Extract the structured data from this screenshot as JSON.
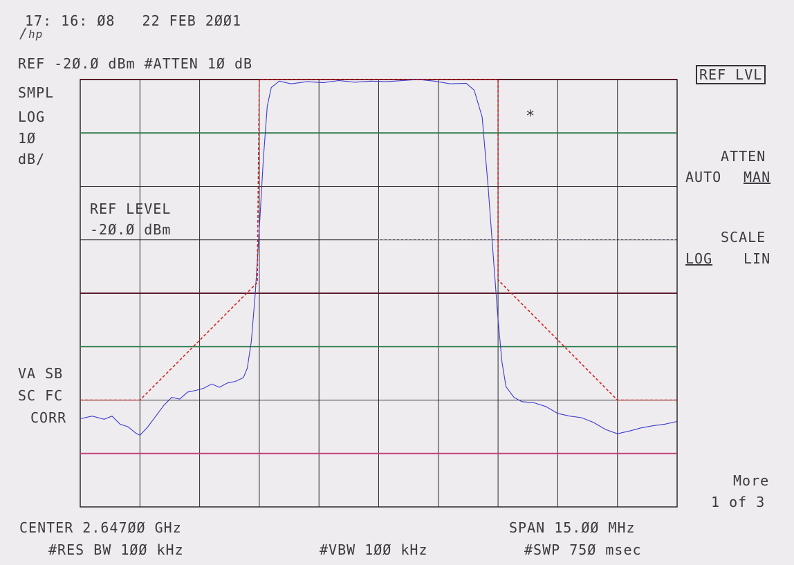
{
  "header": {
    "timestamp": "17: 16: Ø8   22 FEB 2ØØ1",
    "logo": "hp",
    "ref_line": "REF -2Ø.Ø dBm #ATTEN 1Ø dB"
  },
  "left_annotations": {
    "detector": "SMPL",
    "scale": "LOG",
    "scale_value": "1Ø",
    "scale_unit": "dB/",
    "va_sb": "VA SB",
    "sc_fc": "SC FC",
    "corr": "CORR"
  },
  "active_function": {
    "label": "REF LEVEL",
    "value": "-2Ø.Ø dBm"
  },
  "marker_symbol": "*",
  "softkeys": {
    "ref_lvl": "REF LVL",
    "atten": "ATTEN",
    "atten_auto": "AUTO",
    "atten_man": "MAN",
    "scale": "SCALE",
    "scale_log": "LOG",
    "scale_lin": "LIN",
    "more": "More",
    "page": "1 of 3"
  },
  "footer": {
    "center": "CENTER 2.647ØØ GHz",
    "span": "SPAN 15.ØØ MHz",
    "res_bw": "#RES BW 1ØØ kHz",
    "vbw": "#VBW 1ØØ kHz",
    "swp": "#SWP 75Ø msec"
  },
  "chart_data": {
    "type": "line",
    "title": "",
    "xlabel": "",
    "ylabel": "",
    "x_units": "MHz offset from center 2.647 GHz",
    "xlim": [
      -7.5,
      7.5
    ],
    "ylim": [
      -100,
      -20
    ],
    "x_divisions": 10,
    "y_divisions": 8,
    "grid": true,
    "colors": {
      "trace": "#3b3bd0",
      "mask": "#d42020",
      "grid": "#2a2a2a",
      "green_line": "#2e7d4f",
      "magenta_line": "#c0407a",
      "dark_red_line": "#5a1a2a"
    },
    "reference_lines_dBm": [
      {
        "value": -20,
        "color": "#5a1a2a"
      },
      {
        "value": -30,
        "color": "#2e7d4f"
      },
      {
        "value": -60,
        "color": "#5a1a2a"
      },
      {
        "value": -70,
        "color": "#2e7d4f"
      },
      {
        "value": -90,
        "color": "#c0407a"
      }
    ],
    "series": [
      {
        "role": "trace",
        "points": [
          [
            -7.5,
            -83.5
          ],
          [
            -7.2,
            -83
          ],
          [
            -6.9,
            -83.6
          ],
          [
            -6.7,
            -83
          ],
          [
            -6.5,
            -84.5
          ],
          [
            -6.3,
            -85
          ],
          [
            -6.1,
            -86.2
          ],
          [
            -6.0,
            -86.6
          ],
          [
            -5.8,
            -85
          ],
          [
            -5.6,
            -83
          ],
          [
            -5.4,
            -81
          ],
          [
            -5.2,
            -79.5
          ],
          [
            -5.0,
            -79.8
          ],
          [
            -4.8,
            -78.5
          ],
          [
            -4.6,
            -78.2
          ],
          [
            -4.4,
            -77.8
          ],
          [
            -4.2,
            -77
          ],
          [
            -4.0,
            -77.6
          ],
          [
            -3.8,
            -76.8
          ],
          [
            -3.6,
            -76.5
          ],
          [
            -3.4,
            -75.8
          ],
          [
            -3.3,
            -74
          ],
          [
            -3.2,
            -69
          ],
          [
            -3.1,
            -60
          ],
          [
            -3.0,
            -48
          ],
          [
            -2.9,
            -35
          ],
          [
            -2.8,
            -25
          ],
          [
            -2.7,
            -21.5
          ],
          [
            -2.5,
            -20.3
          ],
          [
            -2.2,
            -20.8
          ],
          [
            -1.8,
            -20.4
          ],
          [
            -1.4,
            -20.6
          ],
          [
            -1.0,
            -20.2
          ],
          [
            -0.6,
            -20.5
          ],
          [
            -0.2,
            -20.3
          ],
          [
            0.2,
            -20.4
          ],
          [
            0.6,
            -20.2
          ],
          [
            1.0,
            -20.0
          ],
          [
            1.4,
            -20.3
          ],
          [
            1.8,
            -20.8
          ],
          [
            2.2,
            -20.7
          ],
          [
            2.4,
            -22
          ],
          [
            2.6,
            -27
          ],
          [
            2.75,
            -40
          ],
          [
            2.9,
            -55
          ],
          [
            3.0,
            -65
          ],
          [
            3.1,
            -73
          ],
          [
            3.2,
            -77.5
          ],
          [
            3.4,
            -79.5
          ],
          [
            3.6,
            -80.3
          ],
          [
            3.9,
            -80.5
          ],
          [
            4.2,
            -81.2
          ],
          [
            4.5,
            -82.5
          ],
          [
            4.8,
            -83
          ],
          [
            5.1,
            -83.3
          ],
          [
            5.4,
            -84.2
          ],
          [
            5.7,
            -85.5
          ],
          [
            6.0,
            -86.3
          ],
          [
            6.3,
            -85.8
          ],
          [
            6.6,
            -85.2
          ],
          [
            6.9,
            -84.8
          ],
          [
            7.2,
            -84.5
          ],
          [
            7.5,
            -84.0
          ]
        ]
      },
      {
        "role": "mask",
        "points": [
          [
            -7.5,
            -80
          ],
          [
            -6.0,
            -80
          ],
          [
            -3.05,
            -58
          ],
          [
            -3.0,
            -20
          ],
          [
            3.0,
            -20
          ],
          [
            3.0,
            -57.5
          ],
          [
            6.0,
            -80
          ],
          [
            7.5,
            -80
          ]
        ]
      }
    ]
  }
}
